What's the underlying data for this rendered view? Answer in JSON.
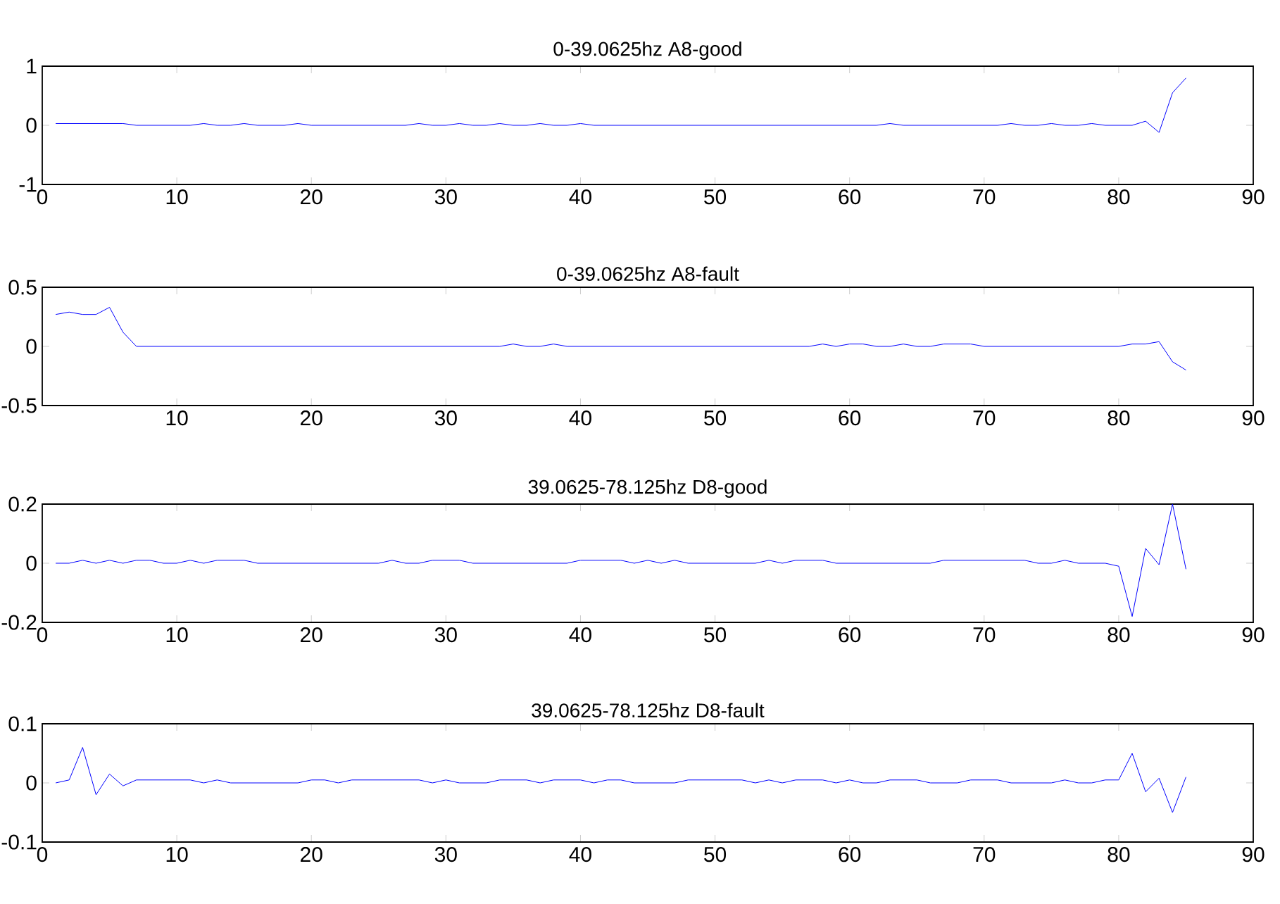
{
  "chart_data": [
    {
      "type": "line",
      "title": "0-39.0625hz  A8-good",
      "color": "#0000ff",
      "xlim": [
        0,
        90
      ],
      "xticks": [
        0,
        10,
        20,
        30,
        40,
        50,
        60,
        70,
        80,
        90
      ],
      "ylim": [
        -1,
        1
      ],
      "yticks": [
        -1,
        0,
        1
      ],
      "x": [
        1,
        2,
        3,
        4,
        5,
        6,
        7,
        8,
        9,
        10,
        11,
        12,
        13,
        14,
        15,
        16,
        17,
        18,
        19,
        20,
        21,
        22,
        23,
        24,
        25,
        26,
        27,
        28,
        29,
        30,
        31,
        32,
        33,
        34,
        35,
        36,
        37,
        38,
        39,
        40,
        41,
        42,
        43,
        44,
        45,
        46,
        47,
        48,
        49,
        50,
        51,
        52,
        53,
        54,
        55,
        56,
        57,
        58,
        59,
        60,
        61,
        62,
        63,
        64,
        65,
        66,
        67,
        68,
        69,
        70,
        71,
        72,
        73,
        74,
        75,
        76,
        77,
        78,
        79,
        80,
        81,
        82,
        83,
        84,
        85
      ],
      "values": [
        0.03,
        0.03,
        0.03,
        0.03,
        0.03,
        0.03,
        0,
        0,
        0,
        0,
        0,
        0.03,
        0,
        0,
        0.03,
        0,
        0,
        0,
        0.03,
        0,
        0,
        0,
        0,
        0,
        0,
        0,
        0,
        0.03,
        0,
        0,
        0.03,
        0,
        0,
        0.03,
        0,
        0,
        0.03,
        0,
        0,
        0.03,
        0,
        0,
        0,
        0,
        0,
        0,
        0,
        0,
        0,
        0,
        0,
        0,
        0,
        0,
        0,
        0,
        0,
        0,
        0,
        0,
        0,
        0,
        0.03,
        0,
        0,
        0,
        0,
        0,
        0,
        0,
        0,
        0.03,
        0,
        0,
        0.03,
        0,
        0,
        0.03,
        0,
        0,
        0,
        0.07,
        -0.12,
        0.55,
        0.8
      ]
    },
    {
      "type": "line",
      "title": "0-39.0625hz  A8-fault",
      "color": "#0000ff",
      "xlim": [
        0,
        90
      ],
      "xticks": [
        10,
        20,
        30,
        40,
        50,
        60,
        70,
        80,
        90
      ],
      "ylim": [
        -0.5,
        0.5
      ],
      "yticks": [
        -0.5,
        0,
        0.5
      ],
      "x": [
        1,
        2,
        3,
        4,
        5,
        6,
        7,
        8,
        9,
        10,
        11,
        12,
        13,
        14,
        15,
        16,
        17,
        18,
        19,
        20,
        21,
        22,
        23,
        24,
        25,
        26,
        27,
        28,
        29,
        30,
        31,
        32,
        33,
        34,
        35,
        36,
        37,
        38,
        39,
        40,
        41,
        42,
        43,
        44,
        45,
        46,
        47,
        48,
        49,
        50,
        51,
        52,
        53,
        54,
        55,
        56,
        57,
        58,
        59,
        60,
        61,
        62,
        63,
        64,
        65,
        66,
        67,
        68,
        69,
        70,
        71,
        72,
        73,
        74,
        75,
        76,
        77,
        78,
        79,
        80,
        81,
        82,
        83,
        84,
        85
      ],
      "values": [
        0.27,
        0.29,
        0.27,
        0.27,
        0.33,
        0.12,
        0,
        0,
        0,
        0,
        0,
        0,
        0,
        0,
        0,
        0,
        0,
        0,
        0,
        0,
        0,
        0,
        0,
        0,
        0,
        0,
        0,
        0,
        0,
        0,
        0,
        0,
        0,
        0,
        0.02,
        0,
        0,
        0.02,
        0,
        0,
        0,
        0,
        0,
        0,
        0,
        0,
        0,
        0,
        0,
        0,
        0,
        0,
        0,
        0,
        0,
        0,
        0,
        0.02,
        0,
        0.02,
        0.02,
        0,
        0,
        0.02,
        0,
        0,
        0.02,
        0.02,
        0.02,
        0,
        0,
        0,
        0,
        0,
        0,
        0,
        0,
        0,
        0,
        0,
        0.02,
        0.02,
        0.04,
        -0.13,
        -0.2
      ]
    },
    {
      "type": "line",
      "title": "39.0625-78.125hz  D8-good",
      "color": "#0000ff",
      "xlim": [
        0,
        90
      ],
      "xticks": [
        0,
        10,
        20,
        30,
        40,
        50,
        60,
        70,
        80,
        90
      ],
      "ylim": [
        -0.2,
        0.2
      ],
      "yticks": [
        -0.2,
        0,
        0.2
      ],
      "x": [
        1,
        2,
        3,
        4,
        5,
        6,
        7,
        8,
        9,
        10,
        11,
        12,
        13,
        14,
        15,
        16,
        17,
        18,
        19,
        20,
        21,
        22,
        23,
        24,
        25,
        26,
        27,
        28,
        29,
        30,
        31,
        32,
        33,
        34,
        35,
        36,
        37,
        38,
        39,
        40,
        41,
        42,
        43,
        44,
        45,
        46,
        47,
        48,
        49,
        50,
        51,
        52,
        53,
        54,
        55,
        56,
        57,
        58,
        59,
        60,
        61,
        62,
        63,
        64,
        65,
        66,
        67,
        68,
        69,
        70,
        71,
        72,
        73,
        74,
        75,
        76,
        77,
        78,
        79,
        80,
        81,
        82,
        83,
        84,
        85
      ],
      "values": [
        0,
        0,
        0.01,
        0,
        0.01,
        0,
        0.01,
        0.01,
        0,
        0,
        0.01,
        0,
        0.01,
        0.01,
        0.01,
        0,
        0,
        0,
        0,
        0,
        0,
        0,
        0,
        0,
        0,
        0.01,
        0,
        0,
        0.01,
        0.01,
        0.01,
        0,
        0,
        0,
        0,
        0,
        0,
        0,
        0,
        0.01,
        0.01,
        0.01,
        0.01,
        0,
        0.01,
        0,
        0.01,
        0,
        0,
        0,
        0,
        0,
        0,
        0.01,
        0,
        0.01,
        0.01,
        0.01,
        0,
        0,
        0,
        0,
        0,
        0,
        0,
        0,
        0.01,
        0.01,
        0.01,
        0.01,
        0.01,
        0.01,
        0.01,
        0,
        0,
        0.01,
        0,
        0,
        0,
        -0.01,
        -0.18,
        0.05,
        -0.005,
        0.2,
        -0.02
      ]
    },
    {
      "type": "line",
      "title": "39.0625-78.125hz  D8-fault",
      "color": "#0000ff",
      "xlim": [
        0,
        90
      ],
      "xticks": [
        0,
        10,
        20,
        30,
        40,
        50,
        60,
        70,
        80,
        90
      ],
      "ylim": [
        -0.1,
        0.1
      ],
      "yticks": [
        -0.1,
        0,
        0.1
      ],
      "x": [
        1,
        2,
        3,
        4,
        5,
        6,
        7,
        8,
        9,
        10,
        11,
        12,
        13,
        14,
        15,
        16,
        17,
        18,
        19,
        20,
        21,
        22,
        23,
        24,
        25,
        26,
        27,
        28,
        29,
        30,
        31,
        32,
        33,
        34,
        35,
        36,
        37,
        38,
        39,
        40,
        41,
        42,
        43,
        44,
        45,
        46,
        47,
        48,
        49,
        50,
        51,
        52,
        53,
        54,
        55,
        56,
        57,
        58,
        59,
        60,
        61,
        62,
        63,
        64,
        65,
        66,
        67,
        68,
        69,
        70,
        71,
        72,
        73,
        74,
        75,
        76,
        77,
        78,
        79,
        80,
        81,
        82,
        83,
        84,
        85
      ],
      "values": [
        0,
        0.005,
        0.06,
        -0.02,
        0.015,
        -0.005,
        0.005,
        0.005,
        0.005,
        0.005,
        0.005,
        0,
        0.005,
        0,
        0,
        0,
        0,
        0,
        0,
        0.005,
        0.005,
        0,
        0.005,
        0.005,
        0.005,
        0.005,
        0.005,
        0.005,
        0,
        0.005,
        0,
        0,
        0,
        0.005,
        0.005,
        0.005,
        0,
        0.005,
        0.005,
        0.005,
        0,
        0.005,
        0.005,
        0,
        0,
        0,
        0,
        0.005,
        0.005,
        0.005,
        0.005,
        0.005,
        0,
        0.005,
        0,
        0.005,
        0.005,
        0.005,
        0,
        0.005,
        0,
        0,
        0.005,
        0.005,
        0.005,
        0,
        0,
        0,
        0.005,
        0.005,
        0.005,
        0,
        0,
        0,
        0,
        0.005,
        0,
        0,
        0.005,
        0.005,
        0.05,
        -0.015,
        0.008,
        -0.05,
        0.01
      ]
    }
  ]
}
